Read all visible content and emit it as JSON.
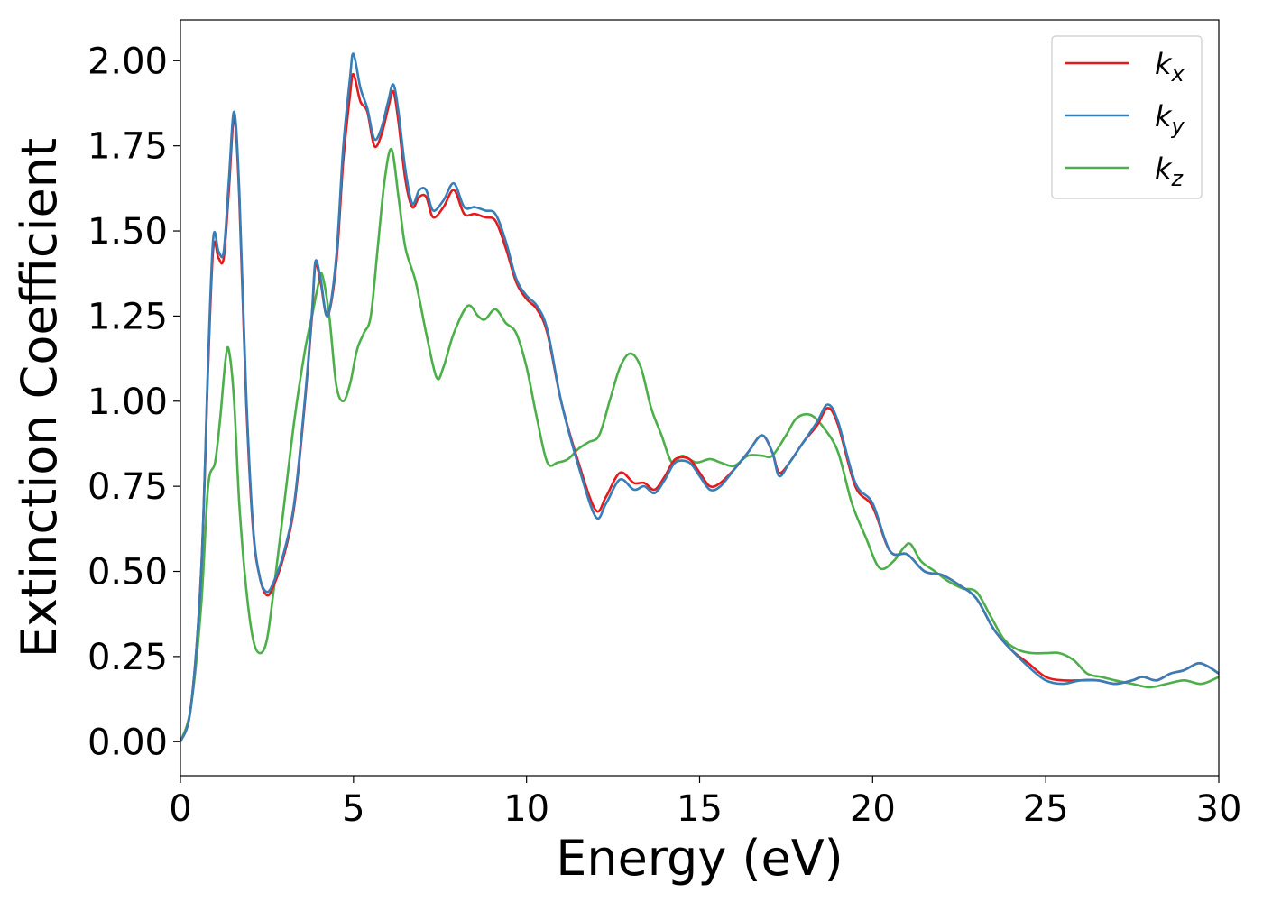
{
  "chart_data": {
    "type": "line",
    "xlabel": "Energy (eV)",
    "ylabel": "Extinction Coefficient",
    "xlim": [
      0,
      30
    ],
    "ylim": [
      -0.1,
      2.12
    ],
    "x_ticks": [
      0,
      5,
      10,
      15,
      20,
      25,
      30
    ],
    "x_tick_labels": [
      "0",
      "5",
      "10",
      "15",
      "20",
      "25",
      "30"
    ],
    "y_ticks": [
      0,
      0.25,
      0.5,
      0.75,
      1.0,
      1.25,
      1.5,
      1.75,
      2.0
    ],
    "y_tick_labels": [
      "0.00",
      "0.25",
      "0.50",
      "0.75",
      "1.00",
      "1.25",
      "1.50",
      "1.75",
      "2.00"
    ],
    "grid": false,
    "legend_position": "top-right",
    "series": [
      {
        "name": "k_x",
        "legend_base": "k",
        "legend_sub": "x",
        "color": "#e41a1c",
        "x": [
          0,
          0.3,
          0.6,
          0.8,
          0.95,
          1.1,
          1.25,
          1.4,
          1.55,
          1.7,
          1.9,
          2.1,
          2.3,
          2.5,
          2.7,
          3.0,
          3.3,
          3.6,
          3.8,
          3.9,
          4.05,
          4.25,
          4.5,
          4.7,
          4.9,
          5.0,
          5.2,
          5.4,
          5.6,
          5.8,
          6.0,
          6.15,
          6.3,
          6.5,
          6.7,
          6.9,
          7.1,
          7.3,
          7.6,
          7.9,
          8.2,
          8.5,
          8.8,
          9.1,
          9.4,
          9.7,
          10.0,
          10.3,
          10.6,
          11.0,
          11.5,
          12.0,
          12.3,
          12.7,
          13.1,
          13.4,
          13.7,
          14.0,
          14.3,
          14.7,
          15.0,
          15.3,
          15.6,
          16.0,
          16.4,
          16.8,
          17.1,
          17.3,
          17.6,
          18.0,
          18.4,
          18.7,
          19.0,
          19.5,
          20.0,
          20.5,
          21.0,
          21.5,
          22.0,
          22.5,
          23.0,
          23.5,
          24.0,
          24.5,
          25.0,
          25.5,
          26.0,
          26.5,
          27.0,
          27.5,
          27.8,
          28.2,
          28.6,
          29.0,
          29.4,
          29.7,
          30.0
        ],
        "y": [
          0.0,
          0.1,
          0.5,
          1.1,
          1.45,
          1.42,
          1.42,
          1.62,
          1.83,
          1.6,
          1.0,
          0.62,
          0.48,
          0.43,
          0.46,
          0.55,
          0.7,
          1.0,
          1.25,
          1.4,
          1.35,
          1.25,
          1.4,
          1.7,
          1.9,
          1.96,
          1.88,
          1.85,
          1.75,
          1.78,
          1.86,
          1.91,
          1.82,
          1.65,
          1.57,
          1.6,
          1.6,
          1.54,
          1.57,
          1.62,
          1.55,
          1.55,
          1.54,
          1.53,
          1.45,
          1.35,
          1.3,
          1.27,
          1.2,
          1.0,
          0.82,
          0.68,
          0.72,
          0.79,
          0.76,
          0.76,
          0.74,
          0.78,
          0.83,
          0.83,
          0.79,
          0.75,
          0.76,
          0.8,
          0.85,
          0.9,
          0.85,
          0.79,
          0.82,
          0.88,
          0.93,
          0.98,
          0.93,
          0.75,
          0.69,
          0.56,
          0.55,
          0.5,
          0.49,
          0.46,
          0.42,
          0.33,
          0.27,
          0.23,
          0.19,
          0.18,
          0.18,
          0.18,
          0.17,
          0.18,
          0.19,
          0.18,
          0.2,
          0.21,
          0.23,
          0.22,
          0.2
        ]
      },
      {
        "name": "k_y",
        "legend_base": "k",
        "legend_sub": "y",
        "color": "#377eb8",
        "x": [
          0,
          0.3,
          0.6,
          0.8,
          0.95,
          1.1,
          1.25,
          1.4,
          1.55,
          1.7,
          1.9,
          2.1,
          2.3,
          2.5,
          2.7,
          3.0,
          3.3,
          3.6,
          3.8,
          3.9,
          4.05,
          4.25,
          4.5,
          4.7,
          4.9,
          5.0,
          5.2,
          5.4,
          5.6,
          5.8,
          6.0,
          6.15,
          6.3,
          6.5,
          6.7,
          6.9,
          7.1,
          7.3,
          7.6,
          7.9,
          8.2,
          8.5,
          8.8,
          9.1,
          9.4,
          9.7,
          10.0,
          10.3,
          10.6,
          11.0,
          11.5,
          12.0,
          12.3,
          12.7,
          13.1,
          13.4,
          13.7,
          14.0,
          14.3,
          14.7,
          15.0,
          15.3,
          15.6,
          16.0,
          16.4,
          16.8,
          17.1,
          17.3,
          17.6,
          18.0,
          18.4,
          18.7,
          19.0,
          19.5,
          20.0,
          20.5,
          21.0,
          21.5,
          22.0,
          22.5,
          23.0,
          23.5,
          24.0,
          24.5,
          25.0,
          25.5,
          26.0,
          26.5,
          27.0,
          27.5,
          27.8,
          28.2,
          28.6,
          29.0,
          29.4,
          29.7,
          30.0
        ],
        "y": [
          0.0,
          0.1,
          0.5,
          1.12,
          1.48,
          1.44,
          1.44,
          1.65,
          1.85,
          1.62,
          1.02,
          0.63,
          0.48,
          0.44,
          0.47,
          0.56,
          0.71,
          1.01,
          1.26,
          1.41,
          1.36,
          1.25,
          1.42,
          1.74,
          1.95,
          2.02,
          1.92,
          1.86,
          1.77,
          1.8,
          1.88,
          1.93,
          1.85,
          1.68,
          1.58,
          1.62,
          1.62,
          1.56,
          1.59,
          1.64,
          1.57,
          1.57,
          1.56,
          1.55,
          1.47,
          1.36,
          1.31,
          1.28,
          1.21,
          1.0,
          0.81,
          0.66,
          0.7,
          0.77,
          0.74,
          0.75,
          0.73,
          0.77,
          0.82,
          0.82,
          0.78,
          0.74,
          0.75,
          0.8,
          0.85,
          0.9,
          0.85,
          0.78,
          0.82,
          0.88,
          0.94,
          0.99,
          0.94,
          0.76,
          0.7,
          0.56,
          0.55,
          0.5,
          0.49,
          0.46,
          0.42,
          0.33,
          0.27,
          0.22,
          0.18,
          0.17,
          0.18,
          0.18,
          0.17,
          0.18,
          0.19,
          0.18,
          0.2,
          0.21,
          0.23,
          0.22,
          0.2
        ]
      },
      {
        "name": "k_z",
        "legend_base": "k",
        "legend_sub": "z",
        "color": "#4daf4a",
        "x": [
          0,
          0.3,
          0.6,
          0.8,
          1.0,
          1.15,
          1.3,
          1.4,
          1.55,
          1.7,
          1.9,
          2.1,
          2.3,
          2.5,
          2.7,
          3.0,
          3.3,
          3.6,
          3.8,
          4.0,
          4.1,
          4.3,
          4.5,
          4.7,
          4.9,
          5.1,
          5.3,
          5.5,
          5.7,
          5.9,
          6.1,
          6.3,
          6.5,
          6.8,
          7.1,
          7.4,
          7.6,
          7.9,
          8.3,
          8.6,
          8.8,
          9.1,
          9.4,
          9.7,
          10.0,
          10.3,
          10.6,
          10.9,
          11.2,
          11.5,
          11.8,
          12.1,
          12.4,
          12.7,
          13.0,
          13.3,
          13.6,
          13.9,
          14.2,
          14.5,
          14.9,
          15.3,
          15.6,
          16.0,
          16.4,
          16.8,
          17.1,
          17.5,
          17.8,
          18.2,
          18.6,
          19.0,
          19.4,
          19.8,
          20.2,
          20.6,
          20.9,
          21.1,
          21.4,
          21.8,
          22.2,
          22.6,
          23.0,
          23.4,
          23.8,
          24.2,
          24.6,
          25.0,
          25.4,
          25.8,
          26.2,
          26.6,
          27.0,
          27.5,
          28.0,
          28.5,
          29.0,
          29.5,
          30.0
        ],
        "y": [
          0.0,
          0.1,
          0.4,
          0.75,
          0.82,
          0.95,
          1.12,
          1.15,
          1.0,
          0.7,
          0.45,
          0.3,
          0.26,
          0.3,
          0.45,
          0.7,
          0.95,
          1.15,
          1.25,
          1.35,
          1.37,
          1.25,
          1.05,
          1.0,
          1.05,
          1.15,
          1.2,
          1.25,
          1.45,
          1.65,
          1.74,
          1.6,
          1.45,
          1.35,
          1.2,
          1.07,
          1.1,
          1.2,
          1.28,
          1.25,
          1.24,
          1.27,
          1.23,
          1.2,
          1.1,
          0.95,
          0.82,
          0.82,
          0.83,
          0.86,
          0.88,
          0.9,
          1.0,
          1.1,
          1.14,
          1.1,
          0.98,
          0.9,
          0.82,
          0.84,
          0.82,
          0.83,
          0.82,
          0.81,
          0.84,
          0.84,
          0.84,
          0.9,
          0.95,
          0.96,
          0.92,
          0.85,
          0.7,
          0.6,
          0.51,
          0.53,
          0.57,
          0.58,
          0.53,
          0.5,
          0.47,
          0.45,
          0.44,
          0.37,
          0.3,
          0.27,
          0.26,
          0.26,
          0.26,
          0.24,
          0.2,
          0.19,
          0.18,
          0.17,
          0.16,
          0.17,
          0.18,
          0.17,
          0.19
        ]
      }
    ]
  }
}
